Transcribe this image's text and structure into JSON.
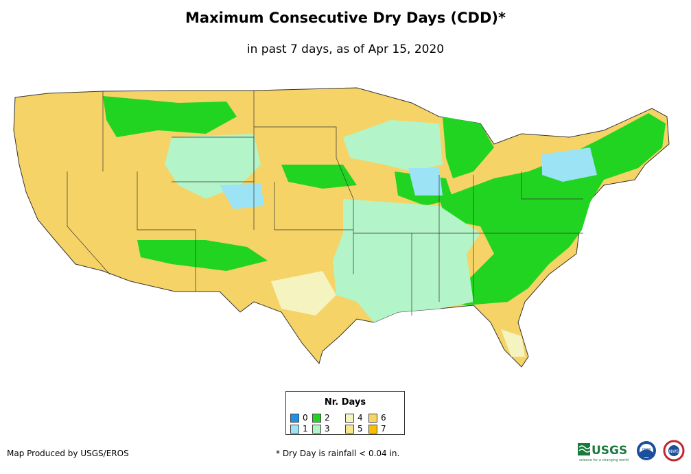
{
  "title": "Maximum Consecutive Dry Days (CDD)*",
  "subtitle": "in past 7 days, as of Apr 15, 2020",
  "legend": {
    "title": "Nr. Days",
    "items": [
      {
        "label": "0",
        "color": "#1e90e6"
      },
      {
        "label": "1",
        "color": "#9be3f5"
      },
      {
        "label": "2",
        "color": "#22d422"
      },
      {
        "label": "3",
        "color": "#b3f5c8"
      },
      {
        "label": "4",
        "color": "#f5f3c0"
      },
      {
        "label": "5",
        "color": "#f7e68a"
      },
      {
        "label": "6",
        "color": "#f5d366"
      },
      {
        "label": "7",
        "color": "#f7bf00"
      }
    ]
  },
  "footer": {
    "producer": "Map Produced by USGS/EROS",
    "note": "* Dry Day is rainfall < 0.04 in."
  },
  "logos": {
    "usgs": "USGS",
    "usgs_tagline": "science for a changing world",
    "noaa": "noaa",
    "nws": "NWS"
  }
}
